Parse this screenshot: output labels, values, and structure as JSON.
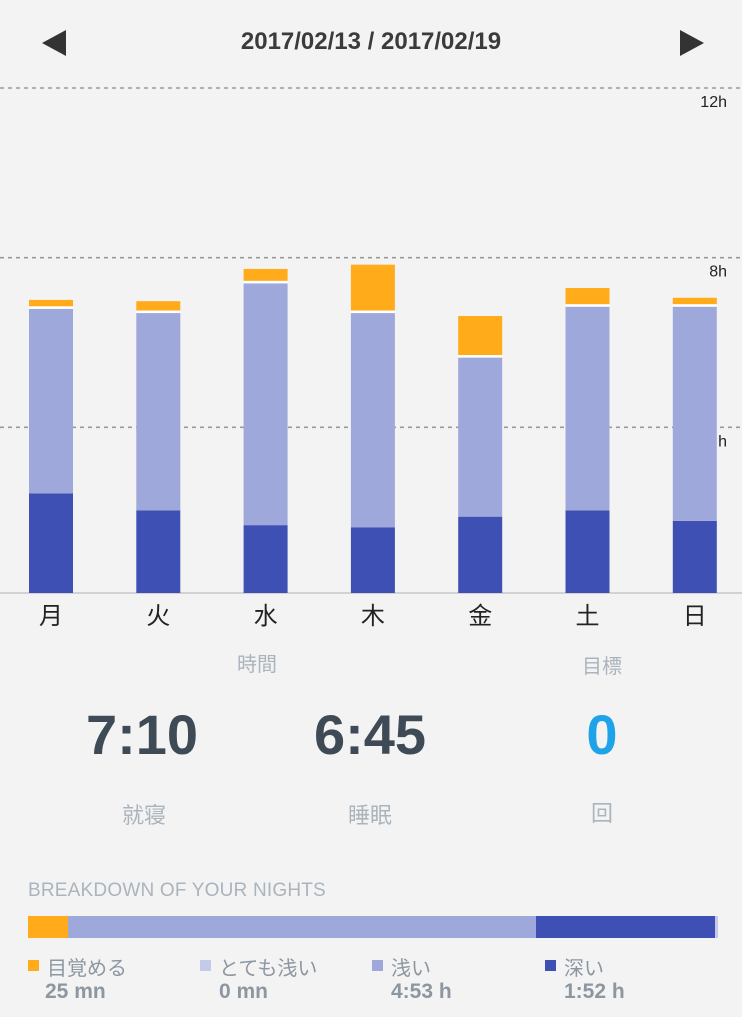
{
  "header": {
    "date_range": "2017/02/13 / 2017/02/19"
  },
  "chart_data": {
    "type": "bar",
    "stacked": true,
    "categories": [
      "月",
      "火",
      "水",
      "木",
      "金",
      "土",
      "日"
    ],
    "y_ticks": [
      "12h",
      "8h",
      "h"
    ],
    "ylim": [
      0,
      12
    ],
    "grid": "dashed",
    "series": [
      {
        "key": "deep",
        "color": "#3f50b5",
        "values": [
          2.35,
          1.95,
          1.6,
          1.55,
          1.8,
          1.95,
          1.7
        ]
      },
      {
        "key": "light",
        "color": "#9fa8da",
        "values": [
          4.35,
          4.65,
          5.7,
          5.05,
          3.75,
          4.8,
          5.05
        ]
      },
      {
        "key": "very_light",
        "color": "#c5cae9",
        "values": [
          0.06,
          0.06,
          0.06,
          0.06,
          0.06,
          0.06,
          0.06
        ]
      },
      {
        "key": "awake",
        "color": "#ffab1a",
        "values": [
          0.15,
          0.22,
          0.28,
          1.08,
          0.92,
          0.38,
          0.15
        ]
      }
    ]
  },
  "stats": {
    "duration_head": "時間",
    "goal_head": "目標",
    "bedtime_value": "7:10",
    "sleep_value": "6:45",
    "goal_value": "0",
    "bedtime_label": "就寝",
    "sleep_label": "睡眠",
    "goal_unit": "回"
  },
  "breakdown": {
    "title": "BREAKDOWN OF YOUR NIGHTS",
    "total_fraction_note": "",
    "segments": [
      {
        "key": "awake",
        "label": "目覚める",
        "value": "25 mn",
        "fraction": 0.058,
        "color": "#ffab1a"
      },
      {
        "key": "light",
        "label": "浅い",
        "value": "4:53 h",
        "fraction": 0.678,
        "color": "#9fa8da"
      },
      {
        "key": "deep",
        "label": "深い",
        "value": "1:52 h",
        "fraction": 0.26,
        "color": "#3f50b5"
      },
      {
        "key": "very_light",
        "label": "とても浅い",
        "value": "0 mn",
        "fraction": 0.004,
        "color": "#c5cae9"
      }
    ]
  }
}
